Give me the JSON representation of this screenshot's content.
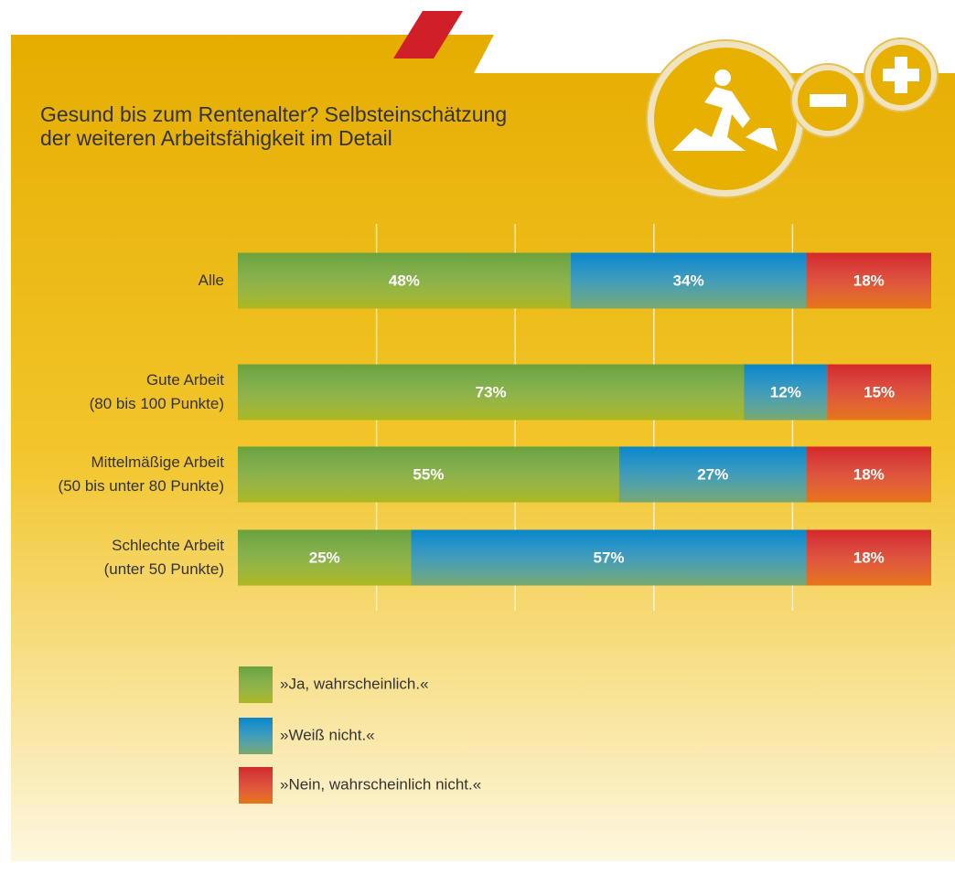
{
  "chart_data": {
    "type": "stacked-barh",
    "title": "Gesund bis zum Rentenalter? Selbsteinschätzung\nder weiteren Arbeitsfähigkeit im Detail",
    "categories": [
      "Alle",
      "Gute Arbeit\n(80 bis 100 Punkte)",
      "Mittelmäßige Arbeit\n(50 bis unter 80 Punkte)",
      "Schlechte Arbeit\n(unter 50 Punkte)"
    ],
    "series": [
      {
        "name": "»Ja, wahrscheinlich.«",
        "color": "#6aa23a",
        "values": [
          48,
          73,
          55,
          25
        ],
        "value_labels": [
          "48%",
          "73%",
          "55%",
          "25%"
        ]
      },
      {
        "name": "»Weiß nicht.«",
        "color": "#0a86c8",
        "values": [
          34,
          12,
          27,
          57
        ],
        "value_labels": [
          "34%",
          "12%",
          "27%",
          "57%"
        ]
      },
      {
        "name": "»Nein, wahrscheinlich nicht.«",
        "color": "#d42828",
        "values": [
          18,
          15,
          18,
          18
        ],
        "value_labels": [
          "18%",
          "15%",
          "18%",
          "18%"
        ]
      }
    ],
    "xlim": [
      0,
      100
    ],
    "xticks": [
      20,
      40,
      60,
      80
    ],
    "grid": true
  }
}
